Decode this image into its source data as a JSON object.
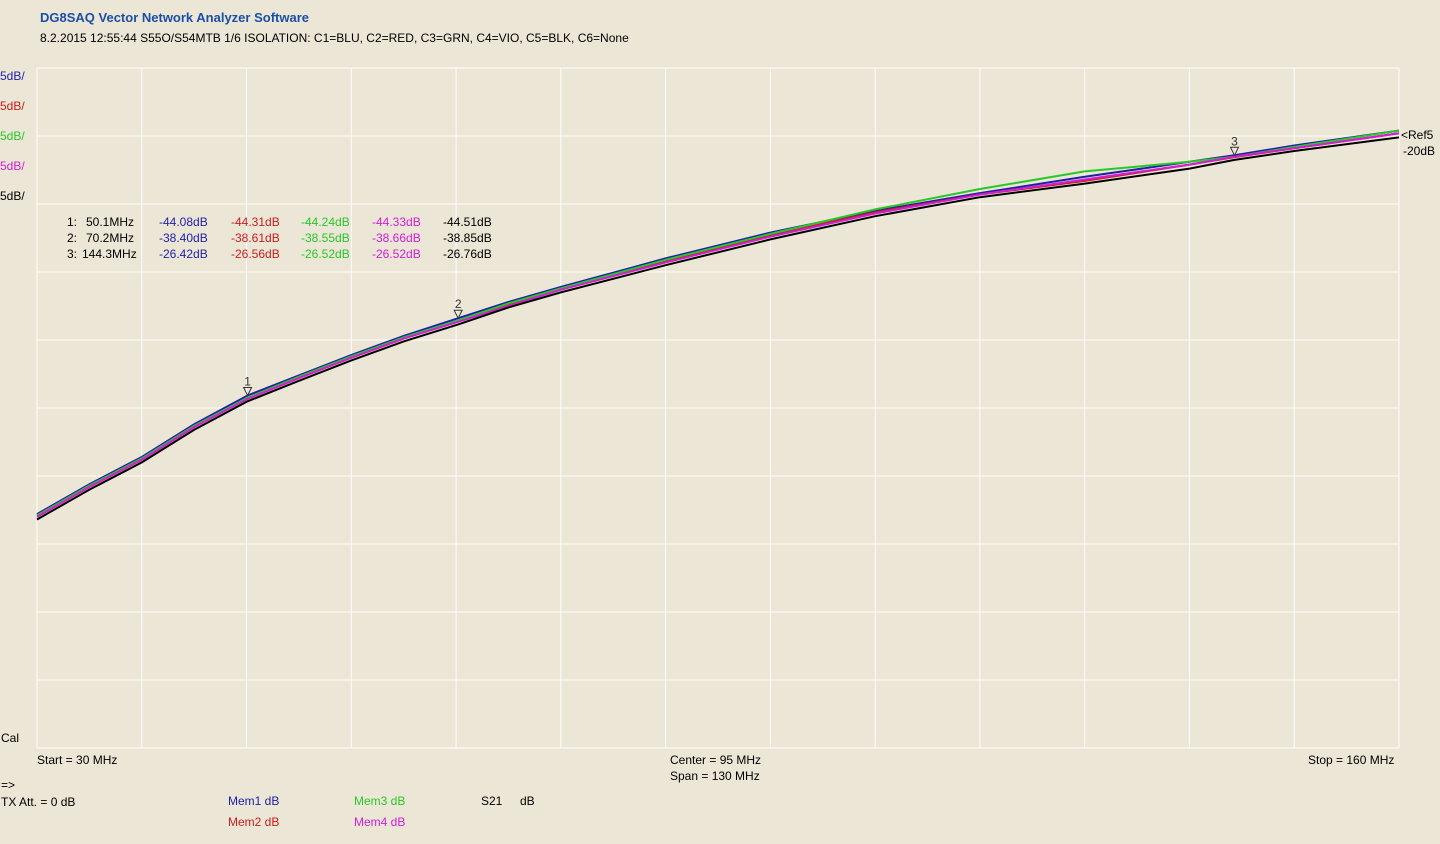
{
  "header": {
    "app_title": "DG8SAQ Vector Network Analyzer Software",
    "subtitle": "8.2.2015   12:55:44   S55O/S54MTB  1/6 ISOLATION:  C1=BLU,  C2=RED,  C3=GRN,  C4=VIO,  C5=BLK,  C6=None"
  },
  "colors": {
    "C1": "#1f1fa8",
    "C2": "#c81e1e",
    "C3": "#28c828",
    "C4": "#d21ed2",
    "C5": "#000000",
    "background": "#ece6d6",
    "grid": "#ffffff"
  },
  "scale_labels": [
    {
      "text": "5dB/",
      "color": "#1f1fa8"
    },
    {
      "text": "5dB/",
      "color": "#c81e1e"
    },
    {
      "text": "5dB/",
      "color": "#28c828"
    },
    {
      "text": "5dB/",
      "color": "#d21ed2"
    },
    {
      "text": "5dB/",
      "color": "#000000"
    }
  ],
  "ref": {
    "label": "<Ref5",
    "value": "-20dB"
  },
  "cal_label": "Cal",
  "prompt": "=>",
  "markers": [
    {
      "label": "1:",
      "freq": "50.1MHz",
      "v": [
        "-44.08dB",
        "-44.31dB",
        "-44.24dB",
        "-44.33dB",
        "-44.51dB"
      ]
    },
    {
      "label": "2:",
      "freq": "70.2MHz",
      "v": [
        "-38.40dB",
        "-38.61dB",
        "-38.55dB",
        "-38.66dB",
        "-38.85dB"
      ]
    },
    {
      "label": "3:",
      "freq": "144.3MHz",
      "v": [
        "-26.42dB",
        "-26.56dB",
        "-26.52dB",
        "-26.52dB",
        "-26.76dB"
      ]
    }
  ],
  "footer": {
    "start": "Start = 30 MHz",
    "center": "Center = 95 MHz",
    "span": "Span = 130 MHz",
    "stop": "Stop = 160 MHz",
    "tx_att": "TX Att.  = 0 dB",
    "mem1": "Mem1 dB",
    "mem2": "Mem2 dB",
    "mem3": "Mem3 dB",
    "mem4": "Mem4 dB",
    "s21": "S21",
    "s21_unit": "dB"
  },
  "chart_data": {
    "type": "line",
    "xlim": [
      30,
      160
    ],
    "ylim": [
      -70,
      -20
    ],
    "x_unit": "MHz",
    "y_unit": "dB",
    "grid": true,
    "x_divisions": 13,
    "y_divisions": 10,
    "marker_freqs": [
      50.1,
      70.2,
      144.3
    ],
    "series": [
      {
        "name": "C1",
        "color": "#1f1fa8",
        "x": [
          30,
          35,
          40,
          45,
          50.1,
          55,
          60,
          65,
          70.2,
          75,
          80,
          90,
          100,
          110,
          120,
          130,
          140,
          144.3,
          150,
          160
        ],
        "y": [
          -52.8,
          -50.6,
          -48.6,
          -46.2,
          -44.08,
          -42.6,
          -41.1,
          -39.7,
          -38.4,
          -37.2,
          -36.1,
          -34.0,
          -32.1,
          -30.5,
          -29.2,
          -28.0,
          -26.9,
          -26.42,
          -25.7,
          -24.6
        ]
      },
      {
        "name": "C2",
        "color": "#c81e1e",
        "x": [
          30,
          35,
          40,
          45,
          50.1,
          55,
          60,
          65,
          70.2,
          75,
          80,
          90,
          100,
          110,
          120,
          130,
          140,
          144.3,
          150,
          160
        ],
        "y": [
          -53.0,
          -50.8,
          -48.8,
          -46.4,
          -44.31,
          -42.8,
          -41.3,
          -39.9,
          -38.61,
          -37.4,
          -36.3,
          -34.2,
          -32.3,
          -30.6,
          -29.3,
          -28.3,
          -27.1,
          -26.56,
          -25.9,
          -24.8
        ]
      },
      {
        "name": "C3",
        "color": "#28c828",
        "x": [
          30,
          35,
          40,
          45,
          50.1,
          55,
          60,
          65,
          70.2,
          75,
          80,
          90,
          100,
          110,
          120,
          130,
          140,
          144.3,
          150,
          160
        ],
        "y": [
          -52.9,
          -50.7,
          -48.7,
          -46.3,
          -44.24,
          -42.7,
          -41.2,
          -39.8,
          -38.55,
          -37.3,
          -36.2,
          -34.1,
          -32.2,
          -30.4,
          -28.9,
          -27.6,
          -26.9,
          -26.52,
          -25.8,
          -24.6
        ]
      },
      {
        "name": "C4",
        "color": "#d21ed2",
        "x": [
          30,
          35,
          40,
          45,
          50.1,
          55,
          60,
          65,
          70.2,
          75,
          80,
          90,
          100,
          110,
          120,
          130,
          140,
          144.3,
          150,
          160
        ],
        "y": [
          -53.0,
          -50.8,
          -48.8,
          -46.4,
          -44.33,
          -42.8,
          -41.3,
          -39.9,
          -38.66,
          -37.5,
          -36.3,
          -34.3,
          -32.4,
          -30.7,
          -29.3,
          -28.2,
          -27.1,
          -26.52,
          -25.9,
          -24.8
        ]
      },
      {
        "name": "C5",
        "color": "#000000",
        "x": [
          30,
          35,
          40,
          45,
          50.1,
          55,
          60,
          65,
          70.2,
          75,
          80,
          90,
          100,
          110,
          120,
          130,
          140,
          144.3,
          150,
          160
        ],
        "y": [
          -53.2,
          -51.0,
          -49.0,
          -46.6,
          -44.51,
          -43.0,
          -41.5,
          -40.1,
          -38.85,
          -37.6,
          -36.5,
          -34.5,
          -32.6,
          -30.9,
          -29.5,
          -28.5,
          -27.4,
          -26.76,
          -26.1,
          -25.1
        ]
      }
    ]
  }
}
